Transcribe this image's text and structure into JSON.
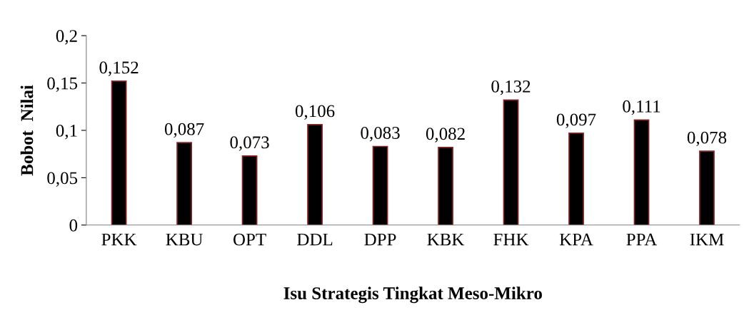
{
  "chart_data": {
    "type": "bar",
    "xlabel": "Isu Strategis Tingkat Meso-Mikro",
    "ylabel": "Bobot  Nilai",
    "categories": [
      "PKK",
      "KBU",
      "OPT",
      "DDL",
      "DPP",
      "KBK",
      "FHK",
      "KPA",
      "PPA",
      "IKM"
    ],
    "values": [
      0.152,
      0.087,
      0.073,
      0.106,
      0.083,
      0.082,
      0.132,
      0.097,
      0.111,
      0.078
    ],
    "value_labels": [
      "0,152",
      "0,087",
      "0,073",
      "0,106",
      "0,083",
      "0,082",
      "0,132",
      "0,097",
      "0,111",
      "0,078"
    ],
    "color": "#000000",
    "ylim": [
      0,
      0.2
    ],
    "yticks": [
      {
        "value": 0,
        "label": "0"
      },
      {
        "value": 0.05,
        "label": "0,05"
      },
      {
        "value": 0.1,
        "label": "0,1"
      },
      {
        "value": 0.15,
        "label": "0,15"
      },
      {
        "value": 0.2,
        "label": "0,2"
      }
    ],
    "grid": false,
    "legend": false
  }
}
